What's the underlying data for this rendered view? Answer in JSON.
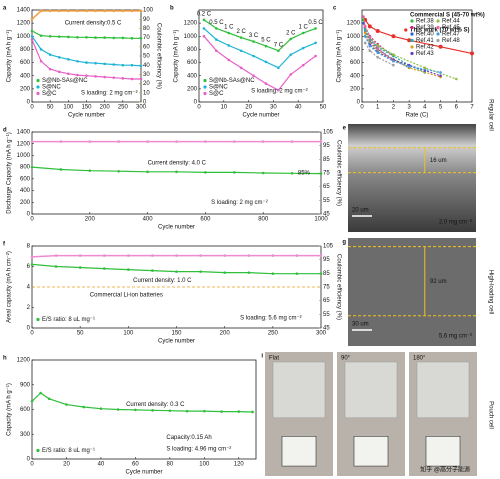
{
  "chart_data": [
    {
      "type": "line",
      "panel": "a",
      "xlabel": "Cycle number",
      "ylabel": "Capacity (mA h g⁻¹)",
      "y2label": "Coulombic efficiency (%)",
      "y2color": "#e8902a",
      "xlim": [
        0,
        300
      ],
      "xticks": [
        0,
        50,
        100,
        150,
        200,
        250,
        300
      ],
      "ylim": [
        0,
        1400
      ],
      "yticks": [
        0,
        200,
        400,
        600,
        800,
        1000,
        1200,
        1400
      ],
      "y2lim": [
        0,
        100
      ],
      "y2ticks": [
        0,
        10,
        20,
        30,
        40,
        50,
        60,
        70,
        80,
        90,
        100
      ],
      "legend": "lower left",
      "annotations": [
        "Current density:0.5 C",
        "S loading: 2 mg cm⁻²"
      ],
      "x": [
        0,
        25,
        50,
        75,
        100,
        125,
        150,
        175,
        200,
        225,
        250,
        275,
        300
      ],
      "series": [
        {
          "name": "S@Nb-SAs@NC",
          "color": "#2fbf3a",
          "values": [
            1080,
            1010,
            1000,
            995,
            990,
            985,
            985,
            980,
            980,
            975,
            975,
            970,
            970
          ]
        },
        {
          "name": "S@NC",
          "color": "#1fb5d6",
          "values": [
            1000,
            800,
            720,
            680,
            650,
            620,
            600,
            590,
            580,
            570,
            560,
            560,
            550
          ]
        },
        {
          "name": "S@C",
          "color": "#e85fc8",
          "values": [
            950,
            620,
            500,
            460,
            430,
            410,
            400,
            390,
            380,
            370,
            360,
            350,
            350
          ]
        },
        {
          "color": "#f0a040",
          "axis": "y2",
          "values": [
            90,
            99,
            99,
            99,
            99,
            99,
            99,
            99,
            99,
            99,
            99,
            99,
            99
          ]
        }
      ]
    },
    {
      "type": "line",
      "panel": "b",
      "xlabel": "Cycle number",
      "ylabel": "Capacity (mA h g⁻¹)",
      "xlim": [
        0,
        50
      ],
      "xticks": [
        0,
        10,
        20,
        30,
        40,
        50
      ],
      "ylim": [
        0,
        1400
      ],
      "yticks": [
        0,
        200,
        400,
        600,
        800,
        1000,
        1200
      ],
      "legend": "lower left",
      "annotations": [
        "S loading: 2 mg cm⁻²"
      ],
      "x": [
        2,
        7,
        12,
        17,
        22,
        27,
        32,
        37,
        42,
        47
      ],
      "point_labels": [
        "0.2 C",
        "0.5 C",
        "1 C",
        "2 C",
        "3 C",
        "5 C",
        "7 C",
        "2 C",
        "1 C",
        "0.5 C"
      ],
      "series": [
        {
          "name": "S@Nb-SAs@NC",
          "color": "#2fbf3a",
          "values": [
            1250,
            1120,
            1050,
            980,
            920,
            850,
            780,
            960,
            1050,
            1120
          ]
        },
        {
          "name": "S@NC",
          "color": "#1fb5d6",
          "values": [
            1120,
            950,
            860,
            780,
            700,
            610,
            520,
            720,
            820,
            900
          ]
        },
        {
          "name": "S@C",
          "color": "#e85fc8",
          "values": [
            1000,
            780,
            640,
            520,
            400,
            280,
            180,
            420,
            560,
            700
          ]
        }
      ]
    },
    {
      "type": "line",
      "panel": "c",
      "xlabel": "Rate (C)",
      "ylabel": "Capacity (mA h g⁻¹)",
      "xlim": [
        0,
        7
      ],
      "xticks": [
        0,
        1,
        2,
        3,
        4,
        5,
        6,
        7
      ],
      "ylim": [
        0,
        1400
      ],
      "yticks": [
        0,
        200,
        400,
        600,
        800,
        1000,
        1200
      ],
      "legend": "upper right",
      "legend_title": "Commercial S (45-70 wt%)",
      "series": [
        {
          "name": "This work (70 wt% S)",
          "color": "#e8302a",
          "x": [
            0.2,
            0.5,
            1,
            2,
            3,
            5,
            7
          ],
          "values": [
            1250,
            1150,
            1080,
            1000,
            940,
            840,
            740
          ]
        },
        {
          "name": "Ref.38",
          "color": "#2fbf3a",
          "dashed": true,
          "x": [
            0.1,
            0.2,
            0.5,
            1,
            2
          ],
          "values": [
            1250,
            1100,
            950,
            850,
            720
          ]
        },
        {
          "name": "Ref.39",
          "color": "#d02090",
          "dashed": true,
          "x": [
            0.2,
            0.5,
            1,
            2
          ],
          "values": [
            1150,
            1000,
            880,
            700
          ]
        },
        {
          "name": "Ref.40",
          "color": "#3060d0",
          "dashed": true,
          "x": [
            0.1,
            0.2,
            0.5,
            1,
            2,
            3
          ],
          "values": [
            1200,
            1050,
            920,
            800,
            650,
            520
          ]
        },
        {
          "name": "Ref.41",
          "color": "#20b0b0",
          "dashed": true,
          "x": [
            0.2,
            0.5,
            1,
            2,
            3,
            4
          ],
          "values": [
            1100,
            950,
            830,
            700,
            560,
            450
          ]
        },
        {
          "name": "Ref.42",
          "color": "#e0a020",
          "dashed": true,
          "x": [
            0.2,
            0.5,
            1,
            2,
            3,
            5
          ],
          "values": [
            1050,
            900,
            780,
            650,
            520,
            380
          ]
        },
        {
          "name": "Ref.43",
          "color": "#6a40c0",
          "dashed": true,
          "x": [
            0.2,
            0.5,
            1,
            2,
            3,
            4,
            5
          ],
          "values": [
            1000,
            870,
            760,
            640,
            560,
            480,
            400
          ]
        },
        {
          "name": "Ref.44",
          "color": "#90c040",
          "dashed": true,
          "x": [
            0.2,
            0.5,
            1,
            2,
            4,
            6
          ],
          "values": [
            1150,
            980,
            860,
            720,
            520,
            350
          ]
        },
        {
          "name": "Ref.45",
          "color": "#f060a0",
          "dashed": true,
          "x": [
            0.1,
            0.2,
            0.5,
            1,
            2
          ],
          "values": [
            1300,
            1150,
            980,
            820,
            620
          ]
        },
        {
          "name": "Ref.47",
          "color": "#40a0e0",
          "dashed": true,
          "x": [
            0.2,
            0.5,
            1,
            2,
            3,
            5
          ],
          "values": [
            1000,
            850,
            750,
            620,
            540,
            450
          ]
        },
        {
          "name": "Ref.48",
          "color": "#a0a0a0",
          "dashed": true,
          "x": [
            0.2,
            0.5,
            1,
            2
          ],
          "values": [
            900,
            780,
            680,
            560
          ]
        }
      ]
    },
    {
      "type": "line",
      "panel": "d",
      "xlabel": "Cycle number",
      "ylabel": "Discharge Capacity (mA h g⁻¹)",
      "y2label": "Coulombic efficiency (%)",
      "y2color": "#e85fc8",
      "xlim": [
        0,
        1000
      ],
      "xticks": [
        0,
        200,
        400,
        600,
        800,
        1000
      ],
      "ylim": [
        0,
        1400
      ],
      "yticks": [
        0,
        200,
        400,
        600,
        800,
        1000,
        1200,
        1400
      ],
      "y2lim": [
        45,
        105
      ],
      "y2ticks": [
        45,
        55,
        65,
        75,
        85,
        95,
        105
      ],
      "annotations": [
        "Current density: 4.0 C",
        "85%",
        "S loading: 2 mg cm⁻²"
      ],
      "x": [
        0,
        100,
        200,
        300,
        400,
        500,
        600,
        700,
        800,
        900,
        1000
      ],
      "series": [
        {
          "color": "#2fbf3a",
          "values": [
            800,
            760,
            740,
            730,
            720,
            720,
            710,
            710,
            700,
            695,
            690
          ]
        },
        {
          "color": "#f08ad0",
          "axis": "y2",
          "values": [
            98,
            98,
            98,
            98,
            98,
            98,
            98,
            98,
            98,
            98,
            98
          ]
        }
      ]
    },
    {
      "type": "line",
      "panel": "f",
      "xlabel": "Cycle number",
      "ylabel": "Areal capacity (mA h cm⁻²)",
      "y2label": "Coulombic efficiency (%)",
      "y2color": "#e85fc8",
      "xlim": [
        0,
        300
      ],
      "xticks": [
        0,
        50,
        100,
        150,
        200,
        250,
        300
      ],
      "ylim": [
        0,
        8
      ],
      "yticks": [
        0,
        2,
        4,
        6,
        8
      ],
      "y2lim": [
        45,
        105
      ],
      "y2ticks": [
        45,
        55,
        65,
        75,
        85,
        95,
        105
      ],
      "legend": "lower left",
      "annotations": [
        "Current density: 1.0 C",
        "S loading: 5.6 mg cm⁻²"
      ],
      "hlines": [
        {
          "value": 4,
          "label": "Commercial Li-ion batteries",
          "color": "#f0a020"
        }
      ],
      "x": [
        0,
        25,
        50,
        75,
        100,
        125,
        150,
        175,
        200,
        225,
        250,
        275,
        300
      ],
      "series": [
        {
          "name": "E/S ratio: 8 uL mg⁻¹",
          "color": "#2fbf3a",
          "values": [
            6.2,
            6.0,
            5.9,
            5.8,
            5.7,
            5.6,
            5.5,
            5.5,
            5.4,
            5.4,
            5.3,
            5.3,
            5.3
          ]
        },
        {
          "color": "#f08ad0",
          "axis": "y2",
          "values": [
            97,
            98,
            98,
            98,
            98,
            98,
            98,
            98,
            98,
            98,
            98,
            98,
            98
          ]
        }
      ]
    },
    {
      "type": "line",
      "panel": "h",
      "xlabel": "Cycle number",
      "ylabel": "Capacity (mA h g⁻¹)",
      "xlim": [
        0,
        130
      ],
      "xticks": [
        0,
        20,
        40,
        60,
        80,
        100,
        120
      ],
      "ylim": [
        0,
        1200
      ],
      "yticks": [
        0,
        300,
        600,
        900,
        1200
      ],
      "legend": "lower left",
      "annotations": [
        "Current density: 0.3 C",
        "Capacity:0.15 Ah",
        "S loading: 4.96 mg cm⁻²"
      ],
      "x": [
        0,
        5,
        10,
        20,
        30,
        40,
        50,
        60,
        70,
        80,
        90,
        100,
        110,
        120,
        128
      ],
      "series": [
        {
          "name": "E/S ratio: 8 uL mg⁻¹",
          "color": "#2fbf3a",
          "values": [
            700,
            800,
            730,
            660,
            630,
            610,
            600,
            595,
            590,
            585,
            580,
            580,
            575,
            575,
            570
          ]
        }
      ]
    }
  ],
  "images": [
    {
      "panel": "e",
      "labels": [
        "16 um",
        "20 um",
        "2.0 mg cm⁻²"
      ]
    },
    {
      "panel": "g",
      "labels": [
        "92 um",
        "30 um",
        "5.6 mg cm⁻²"
      ]
    },
    {
      "panel": "i",
      "labels": [
        "Flat",
        "90°",
        "180°"
      ]
    }
  ],
  "side_labels": [
    "Regular cell",
    "High-loading cell",
    "Pouch cell"
  ],
  "watermark": "知乎 @高分子能源"
}
